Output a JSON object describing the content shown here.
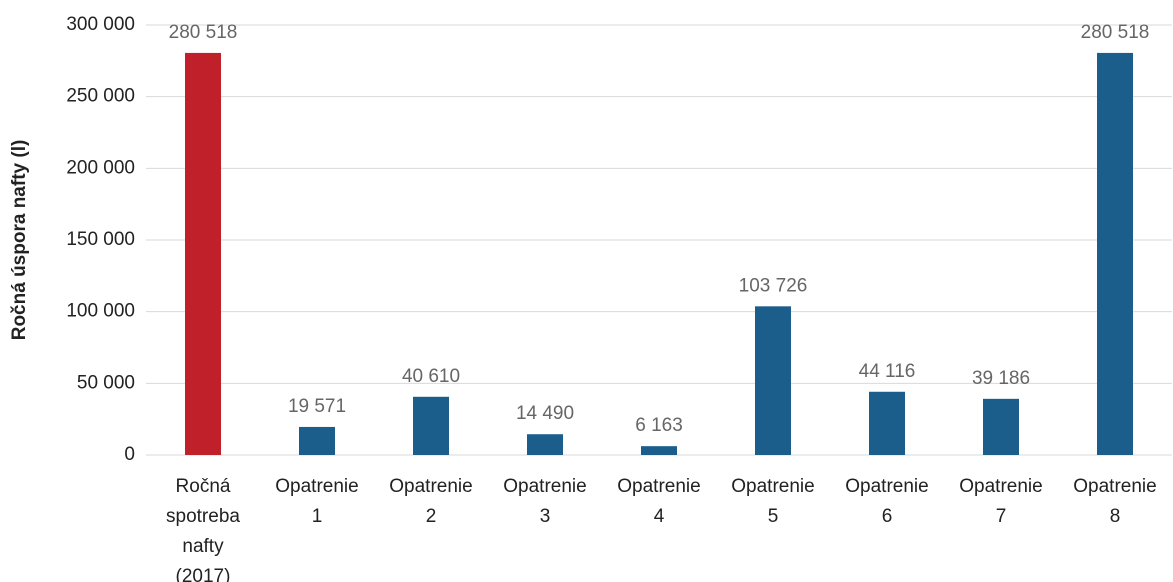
{
  "chart_data": {
    "type": "bar",
    "y_label": "Ročná úspora nafty (l)",
    "categories": [
      "Ročná spotreba nafty (2017)",
      "Opatrenie 1",
      "Opatrenie 2",
      "Opatrenie 3",
      "Opatrenie 4",
      "Opatrenie 5",
      "Opatrenie 6",
      "Opatrenie 7",
      "Opatrenie 8"
    ],
    "values": [
      280518,
      19571,
      40610,
      14490,
      6163,
      103726,
      44116,
      39186,
      280518
    ],
    "value_labels": [
      "280 518",
      "19 571",
      "40 610",
      "14 490",
      "6 163",
      "103 726",
      "44 116",
      "39 186",
      "280 518"
    ],
    "colors": [
      "#c0202a",
      "#1b5e8b",
      "#1b5e8b",
      "#1b5e8b",
      "#1b5e8b",
      "#1b5e8b",
      "#1b5e8b",
      "#1b5e8b",
      "#1b5e8b"
    ],
    "ylim": [
      0,
      300000
    ],
    "yticks": [
      {
        "value": 0,
        "label": "0"
      },
      {
        "value": 50000,
        "label": "50 000"
      },
      {
        "value": 100000,
        "label": "100 000"
      },
      {
        "value": 150000,
        "label": "150 000"
      },
      {
        "value": 200000,
        "label": "200 000"
      },
      {
        "value": 250000,
        "label": "250 000"
      },
      {
        "value": 300000,
        "label": "300 000"
      }
    ],
    "grid": true
  }
}
